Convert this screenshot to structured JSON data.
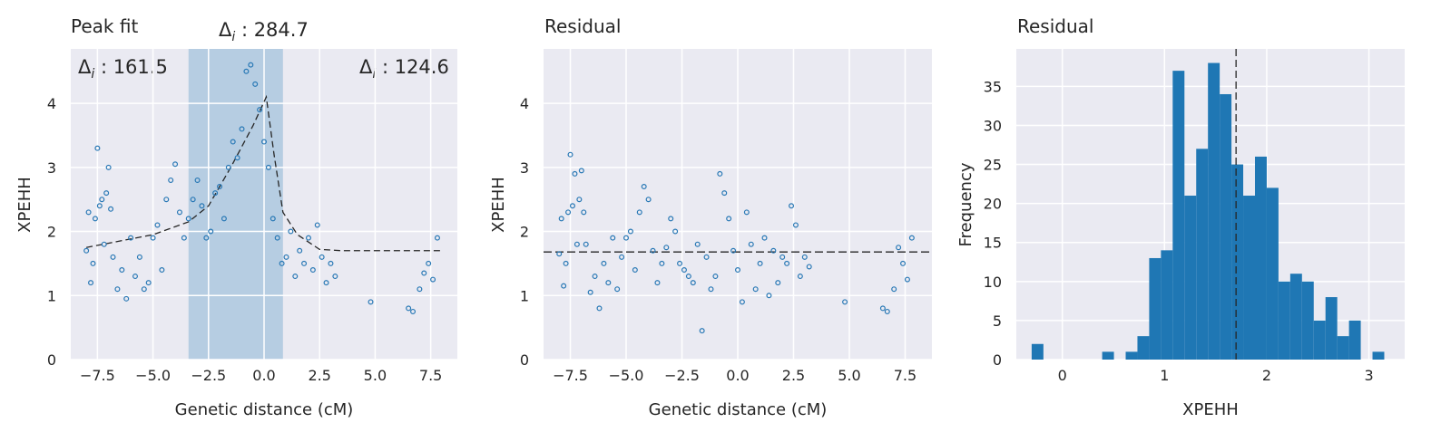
{
  "chart_data": [
    {
      "type": "scatter",
      "title": "Peak fit",
      "xlabel": "Genetic distance (cM)",
      "ylabel": "XPEHH",
      "xlim": [
        -8.7,
        8.7
      ],
      "ylim": [
        0,
        4.85
      ],
      "xticks": [
        -7.5,
        -5.0,
        -2.5,
        0.0,
        2.5,
        5.0,
        7.5
      ],
      "xtick_labels": [
        "−7.5",
        "−5.0",
        "−2.5",
        "0.0",
        "2.5",
        "5.0",
        "7.5"
      ],
      "yticks": [
        0,
        1,
        2,
        3,
        4
      ],
      "ytick_labels": [
        "0",
        "1",
        "2",
        "3",
        "4"
      ],
      "grid": true,
      "shaded_region": [
        -3.4,
        0.85
      ],
      "annotations": {
        "left": {
          "label": "Δ",
          "sub": "i",
          "value": " : 161.5"
        },
        "center": {
          "label": "Δ",
          "sub": "i",
          "value": " : 284.7"
        },
        "right": {
          "label": "Δ",
          "sub": "i",
          "value": " : 124.6"
        }
      },
      "fit_line": [
        [
          -8.0,
          1.75
        ],
        [
          -5.0,
          1.95
        ],
        [
          -3.4,
          2.15
        ],
        [
          -2.5,
          2.4
        ],
        [
          -1.5,
          3.0
        ],
        [
          -0.5,
          3.65
        ],
        [
          0.1,
          4.1
        ],
        [
          0.45,
          3.2
        ],
        [
          0.85,
          2.3
        ],
        [
          1.5,
          1.95
        ],
        [
          2.5,
          1.72
        ],
        [
          3.5,
          1.7
        ],
        [
          8.0,
          1.7
        ]
      ],
      "series": [
        {
          "color": "#2878b5",
          "x": [
            -8.0,
            -7.9,
            -7.8,
            -7.7,
            -7.6,
            -7.5,
            -7.4,
            -7.3,
            -7.2,
            -7.1,
            -7.0,
            -6.9,
            -6.8,
            -6.6,
            -6.4,
            -6.2,
            -6.0,
            -5.8,
            -5.6,
            -5.4,
            -5.2,
            -5.0,
            -4.8,
            -4.6,
            -4.4,
            -4.2,
            -4.0,
            -3.8,
            -3.6,
            -3.4,
            -3.2,
            -3.0,
            -2.8,
            -2.6,
            -2.4,
            -2.2,
            -2.0,
            -1.8,
            -1.6,
            -1.4,
            -1.2,
            -1.0,
            -0.8,
            -0.6,
            -0.4,
            -0.2,
            0.0,
            0.2,
            0.4,
            0.6,
            0.8,
            1.0,
            1.2,
            1.4,
            1.6,
            1.8,
            2.0,
            2.2,
            2.4,
            2.6,
            2.8,
            3.0,
            3.2,
            4.8,
            6.5,
            6.7,
            7.0,
            7.2,
            7.4,
            7.6,
            7.8
          ],
          "y": [
            1.7,
            2.3,
            1.2,
            1.5,
            2.2,
            3.3,
            2.4,
            2.5,
            1.8,
            2.6,
            3.0,
            2.35,
            1.6,
            1.1,
            1.4,
            0.95,
            1.9,
            1.3,
            1.6,
            1.1,
            1.2,
            1.9,
            2.1,
            1.4,
            2.5,
            2.8,
            3.05,
            2.3,
            1.9,
            2.2,
            2.5,
            2.8,
            2.4,
            1.9,
            2.0,
            2.6,
            2.7,
            2.2,
            3.0,
            3.4,
            3.15,
            3.6,
            4.5,
            4.6,
            4.3,
            3.9,
            3.4,
            3.0,
            2.2,
            1.9,
            1.5,
            1.6,
            2.0,
            1.3,
            1.7,
            1.5,
            1.9,
            1.4,
            2.1,
            1.6,
            1.2,
            1.5,
            1.3,
            0.9,
            0.8,
            0.75,
            1.1,
            1.35,
            1.5,
            1.25,
            1.9
          ]
        }
      ]
    },
    {
      "type": "scatter",
      "title": "Residual",
      "xlabel": "Genetic distance (cM)",
      "ylabel": "XPEHH",
      "xlim": [
        -8.7,
        8.7
      ],
      "ylim": [
        0,
        4.85
      ],
      "xticks": [
        -7.5,
        -5.0,
        -2.5,
        0.0,
        2.5,
        5.0,
        7.5
      ],
      "xtick_labels": [
        "−7.5",
        "−5.0",
        "−2.5",
        "0.0",
        "2.5",
        "5.0",
        "7.5"
      ],
      "yticks": [
        0,
        1,
        2,
        3,
        4
      ],
      "ytick_labels": [
        "0",
        "1",
        "2",
        "3",
        "4"
      ],
      "grid": true,
      "hline": 1.68,
      "series": [
        {
          "color": "#2878b5",
          "x": [
            -8.0,
            -7.9,
            -7.8,
            -7.7,
            -7.6,
            -7.5,
            -7.4,
            -7.3,
            -7.2,
            -7.1,
            -7.0,
            -6.9,
            -6.8,
            -6.6,
            -6.4,
            -6.2,
            -6.0,
            -5.8,
            -5.6,
            -5.4,
            -5.2,
            -5.0,
            -4.8,
            -4.6,
            -4.4,
            -4.2,
            -4.0,
            -3.8,
            -3.6,
            -3.4,
            -3.2,
            -3.0,
            -2.8,
            -2.6,
            -2.4,
            -2.2,
            -2.0,
            -1.8,
            -1.6,
            -1.4,
            -1.2,
            -1.0,
            -0.8,
            -0.6,
            -0.4,
            -0.2,
            0.0,
            0.2,
            0.4,
            0.6,
            0.8,
            1.0,
            1.2,
            1.4,
            1.6,
            1.8,
            2.0,
            2.2,
            2.4,
            2.6,
            2.8,
            3.0,
            3.2,
            4.8,
            6.5,
            6.7,
            7.0,
            7.2,
            7.4,
            7.6,
            7.8
          ],
          "y": [
            1.65,
            2.2,
            1.15,
            1.5,
            2.3,
            3.2,
            2.4,
            2.9,
            1.8,
            2.5,
            2.95,
            2.3,
            1.8,
            1.05,
            1.3,
            0.8,
            1.5,
            1.2,
            1.9,
            1.1,
            1.6,
            1.9,
            2.0,
            1.4,
            2.3,
            2.7,
            2.5,
            1.7,
            1.2,
            1.5,
            1.75,
            2.2,
            2.0,
            1.5,
            1.4,
            1.3,
            1.2,
            1.8,
            0.45,
            1.6,
            1.1,
            1.3,
            2.9,
            2.6,
            2.2,
            1.7,
            1.4,
            0.9,
            2.3,
            1.8,
            1.1,
            1.5,
            1.9,
            1.0,
            1.7,
            1.2,
            1.6,
            1.5,
            2.4,
            2.1,
            1.3,
            1.6,
            1.45,
            0.9,
            0.8,
            0.75,
            1.1,
            1.75,
            1.5,
            1.25,
            1.9
          ]
        }
      ]
    },
    {
      "type": "bar",
      "title": "Residual",
      "xlabel": "XPEHH",
      "ylabel": "Frequency",
      "xlim": [
        -0.45,
        3.35
      ],
      "ylim": [
        0,
        39.8
      ],
      "xticks": [
        0,
        1,
        2,
        3
      ],
      "xtick_labels": [
        "0",
        "1",
        "2",
        "3"
      ],
      "yticks": [
        0,
        5,
        10,
        15,
        20,
        25,
        30,
        35
      ],
      "ytick_labels": [
        "0",
        "5",
        "10",
        "15",
        "20",
        "25",
        "30",
        "35"
      ],
      "grid": true,
      "vline": 1.7,
      "color": "#1f77b4",
      "bin_start": -0.3,
      "bin_width": 0.115,
      "values": [
        2,
        0,
        0,
        0,
        0,
        0,
        1,
        0,
        1,
        3,
        13,
        14,
        37,
        21,
        27,
        38,
        34,
        25,
        21,
        26,
        22,
        10,
        11,
        10,
        5,
        8,
        3,
        5,
        0,
        1
      ]
    }
  ]
}
